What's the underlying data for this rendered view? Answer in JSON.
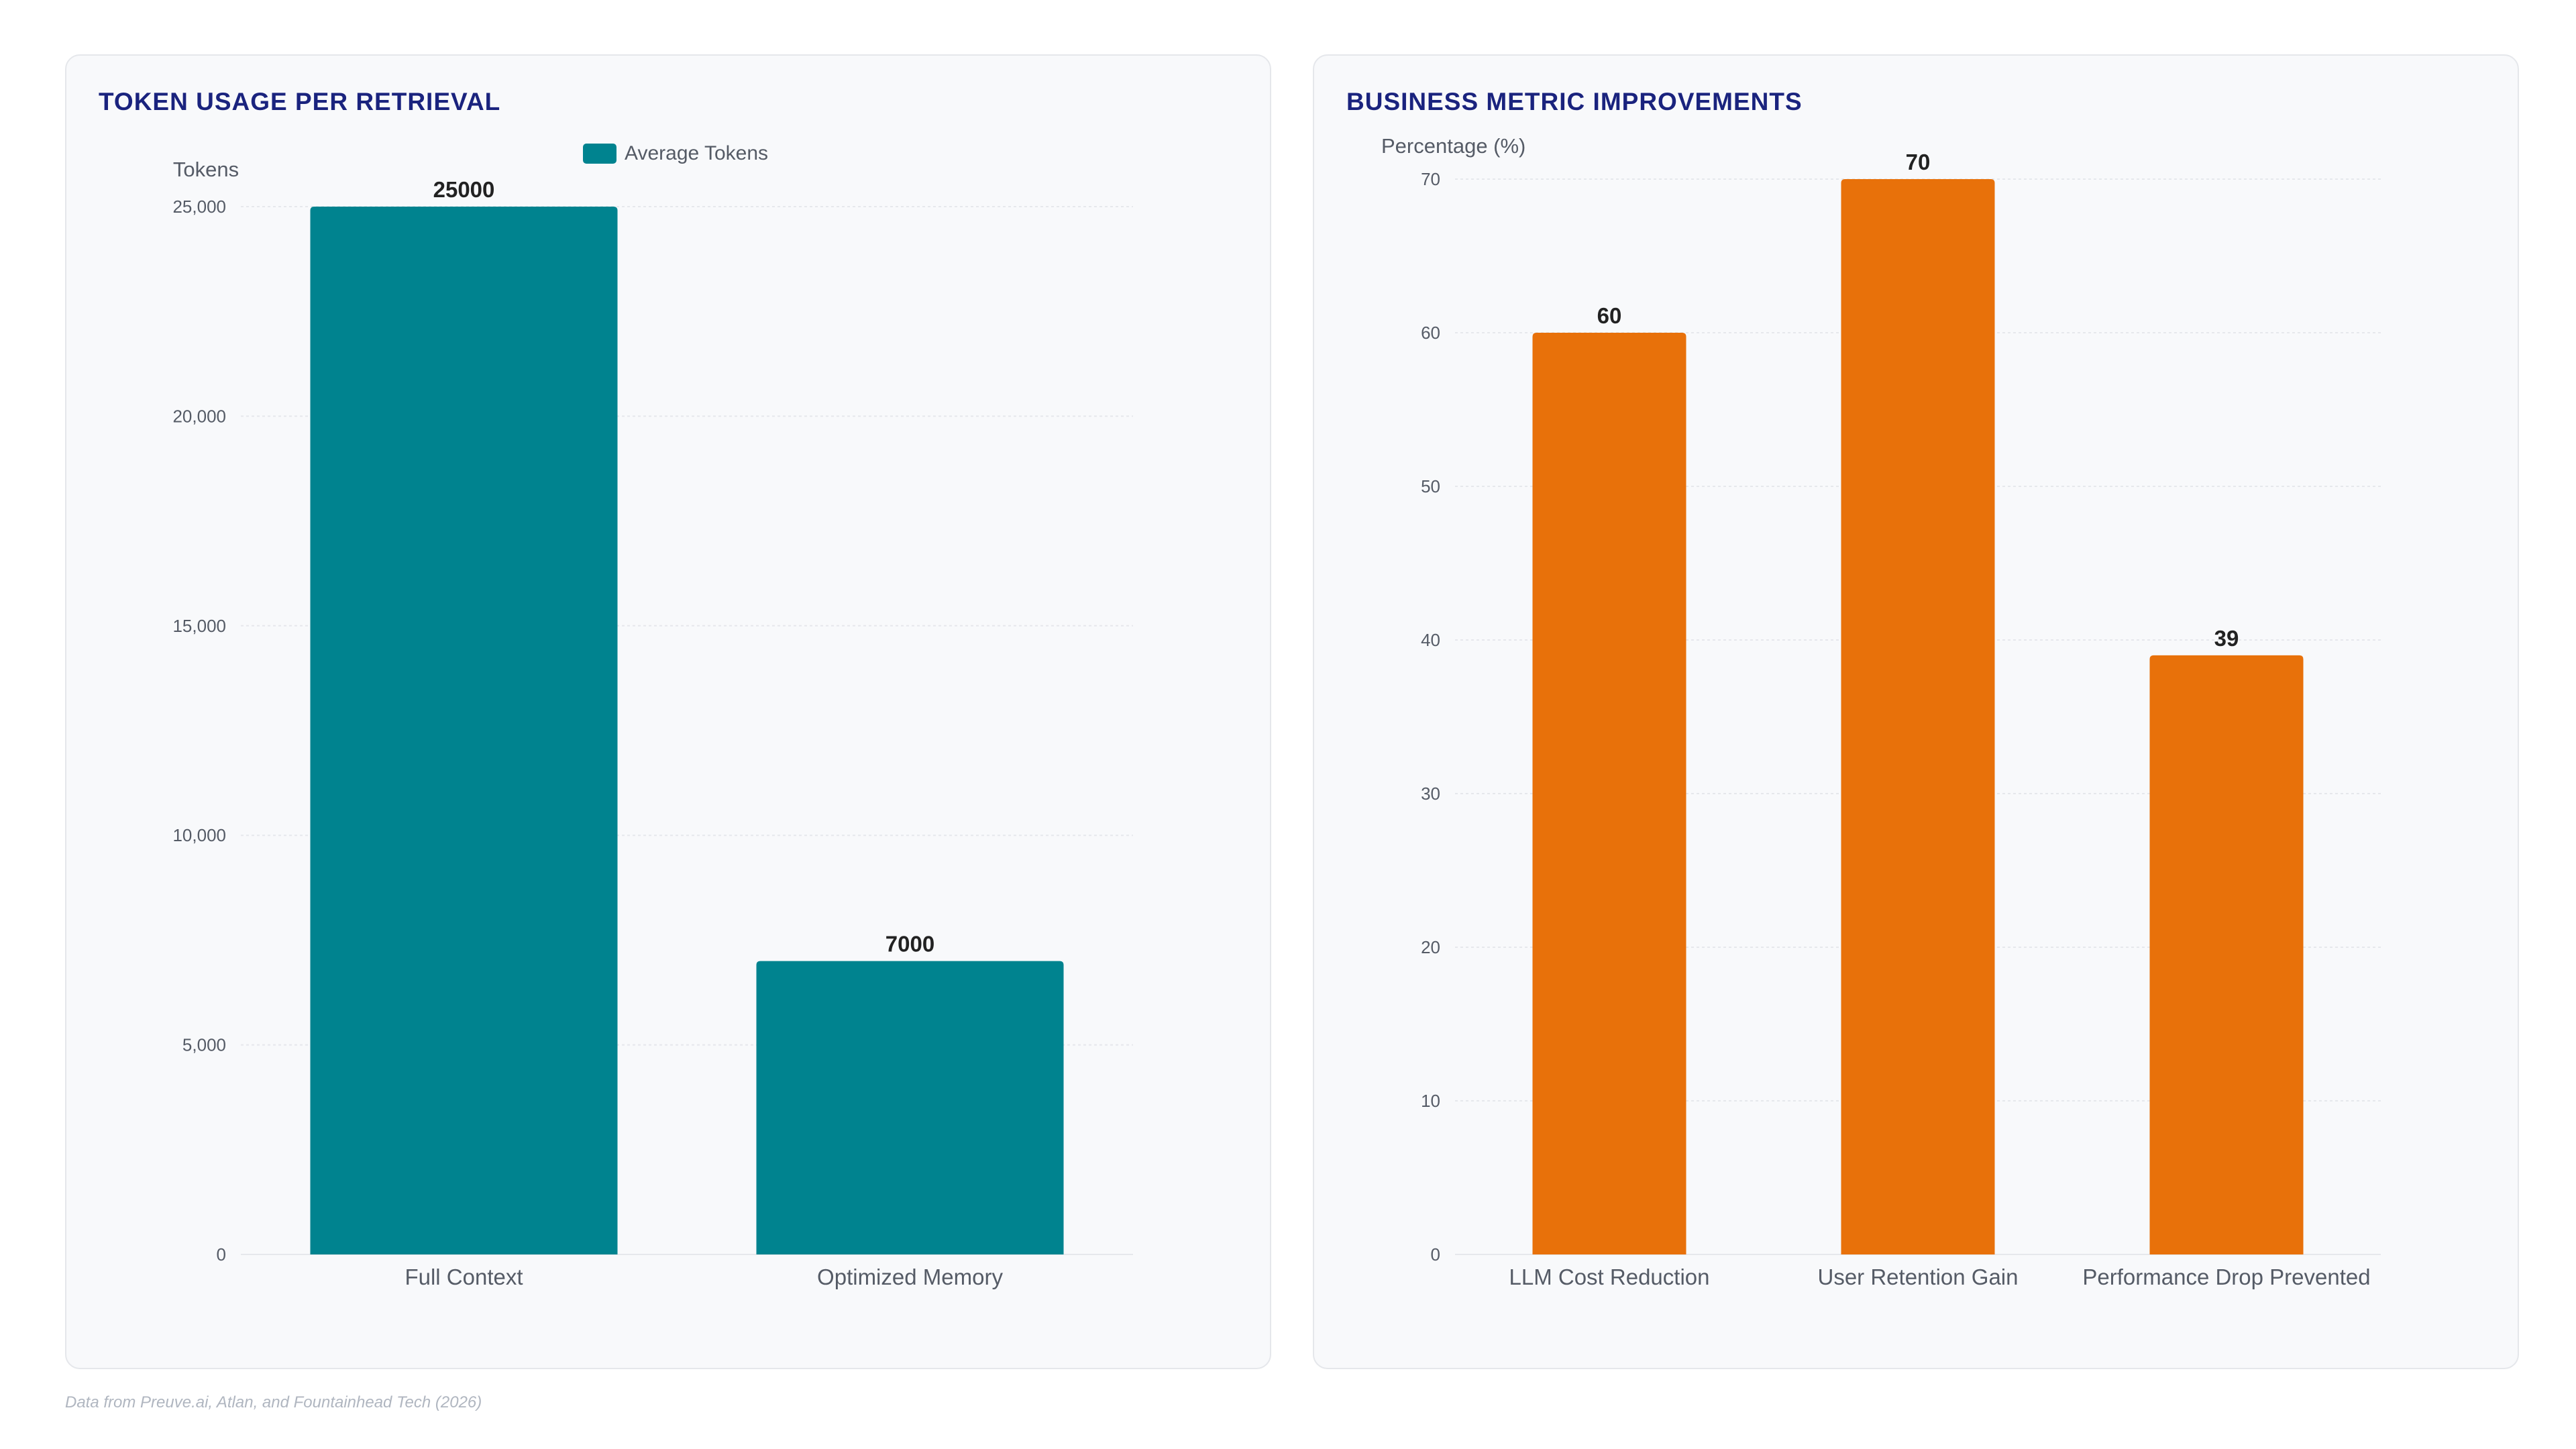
{
  "footnote": "Data from Preuve.ai, Atlan, and Fountainhead Tech (2026)",
  "chart_data": [
    {
      "type": "bar",
      "title": "TOKEN USAGE PER RETRIEVAL",
      "ylabel": "Tokens",
      "xlabel": "",
      "categories": [
        "Full Context",
        "Optimized Memory"
      ],
      "series": [
        {
          "name": "Average Tokens",
          "values": [
            25000,
            7000
          ],
          "color": "#00838f"
        }
      ],
      "data_labels": [
        "25000",
        "7000"
      ],
      "ylim": [
        0,
        25000
      ],
      "yticks": [
        0,
        5000,
        10000,
        15000,
        20000,
        25000
      ],
      "ytick_labels": [
        "0",
        "5,000",
        "10,000",
        "15,000",
        "20,000",
        "25,000"
      ],
      "grid": true,
      "legend": "top"
    },
    {
      "type": "bar",
      "title": "BUSINESS METRIC IMPROVEMENTS",
      "ylabel": "Percentage (%)",
      "xlabel": "",
      "categories": [
        "LLM Cost Reduction",
        "User Retention Gain",
        "Performance Drop Prevented"
      ],
      "series": [
        {
          "values": [
            60,
            70,
            39
          ],
          "color": "#e8710a"
        }
      ],
      "data_labels": [
        "60",
        "70",
        "39"
      ],
      "ylim": [
        0,
        70
      ],
      "yticks": [
        0,
        10,
        20,
        30,
        40,
        50,
        60,
        70
      ],
      "ytick_labels": [
        "0",
        "10",
        "20",
        "30",
        "40",
        "50",
        "60",
        "70"
      ],
      "grid": true,
      "legend": "none"
    }
  ]
}
